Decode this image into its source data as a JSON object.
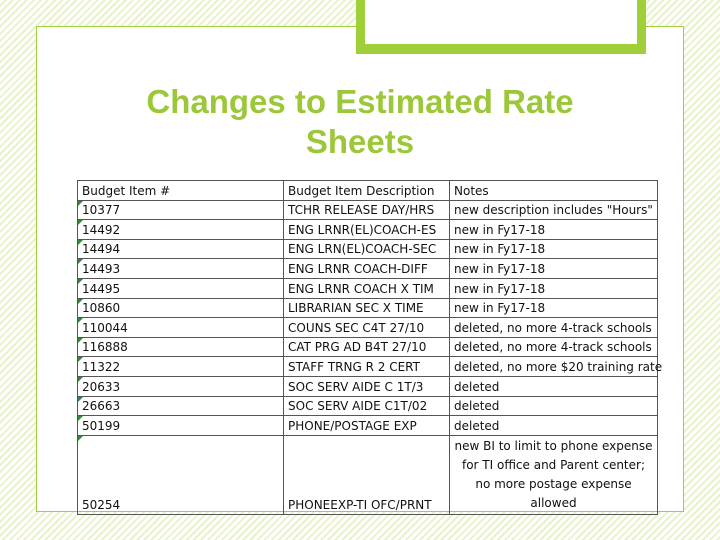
{
  "slide": {
    "title_line1": "Changes to Estimated Rate",
    "title_line2": "Sheets"
  },
  "colors": {
    "accent": "#9fd03a",
    "title": "#9cc739",
    "cell_marker": "#2e8b3a"
  },
  "table": {
    "headers": [
      "Budget Item #",
      "Budget Item Description",
      "Notes"
    ],
    "rows": [
      [
        "10377",
        "TCHR RELEASE DAY/HRS",
        "new description includes \"Hours\""
      ],
      [
        "14492",
        "ENG LRNR(EL)COACH-ES",
        "new in Fy17-18"
      ],
      [
        "14494",
        "ENG LRN(EL)COACH-SEC",
        "new in Fy17-18"
      ],
      [
        "14493",
        "ENG LRNR COACH-DIFF",
        "new in Fy17-18"
      ],
      [
        "14495",
        "ENG LRNR COACH X TIM",
        "new in Fy17-18"
      ],
      [
        "10860",
        "LIBRARIAN SEC X TIME",
        "new in Fy17-18"
      ],
      [
        "110044",
        "COUNS SEC C4T 27/10",
        "deleted, no more 4-track schools"
      ],
      [
        "116888",
        "CAT PRG AD B4T 27/10",
        "deleted, no more 4-track schools"
      ],
      [
        "11322",
        "STAFF TRNG R 2 CERT",
        "deleted, no more $20 training rate"
      ],
      [
        "20633",
        "SOC SERV AIDE C 1T/3",
        "deleted"
      ],
      [
        "26663",
        "SOC SERV AIDE C1T/02",
        "deleted"
      ],
      [
        "50199",
        "PHONE/POSTAGE EXP",
        "deleted"
      ],
      [
        "50254",
        "PHONEEXP-TI OFC/PRNT",
        "new BI to limit to phone expense for TI office and Parent center; no more postage expense allowed"
      ]
    ]
  }
}
